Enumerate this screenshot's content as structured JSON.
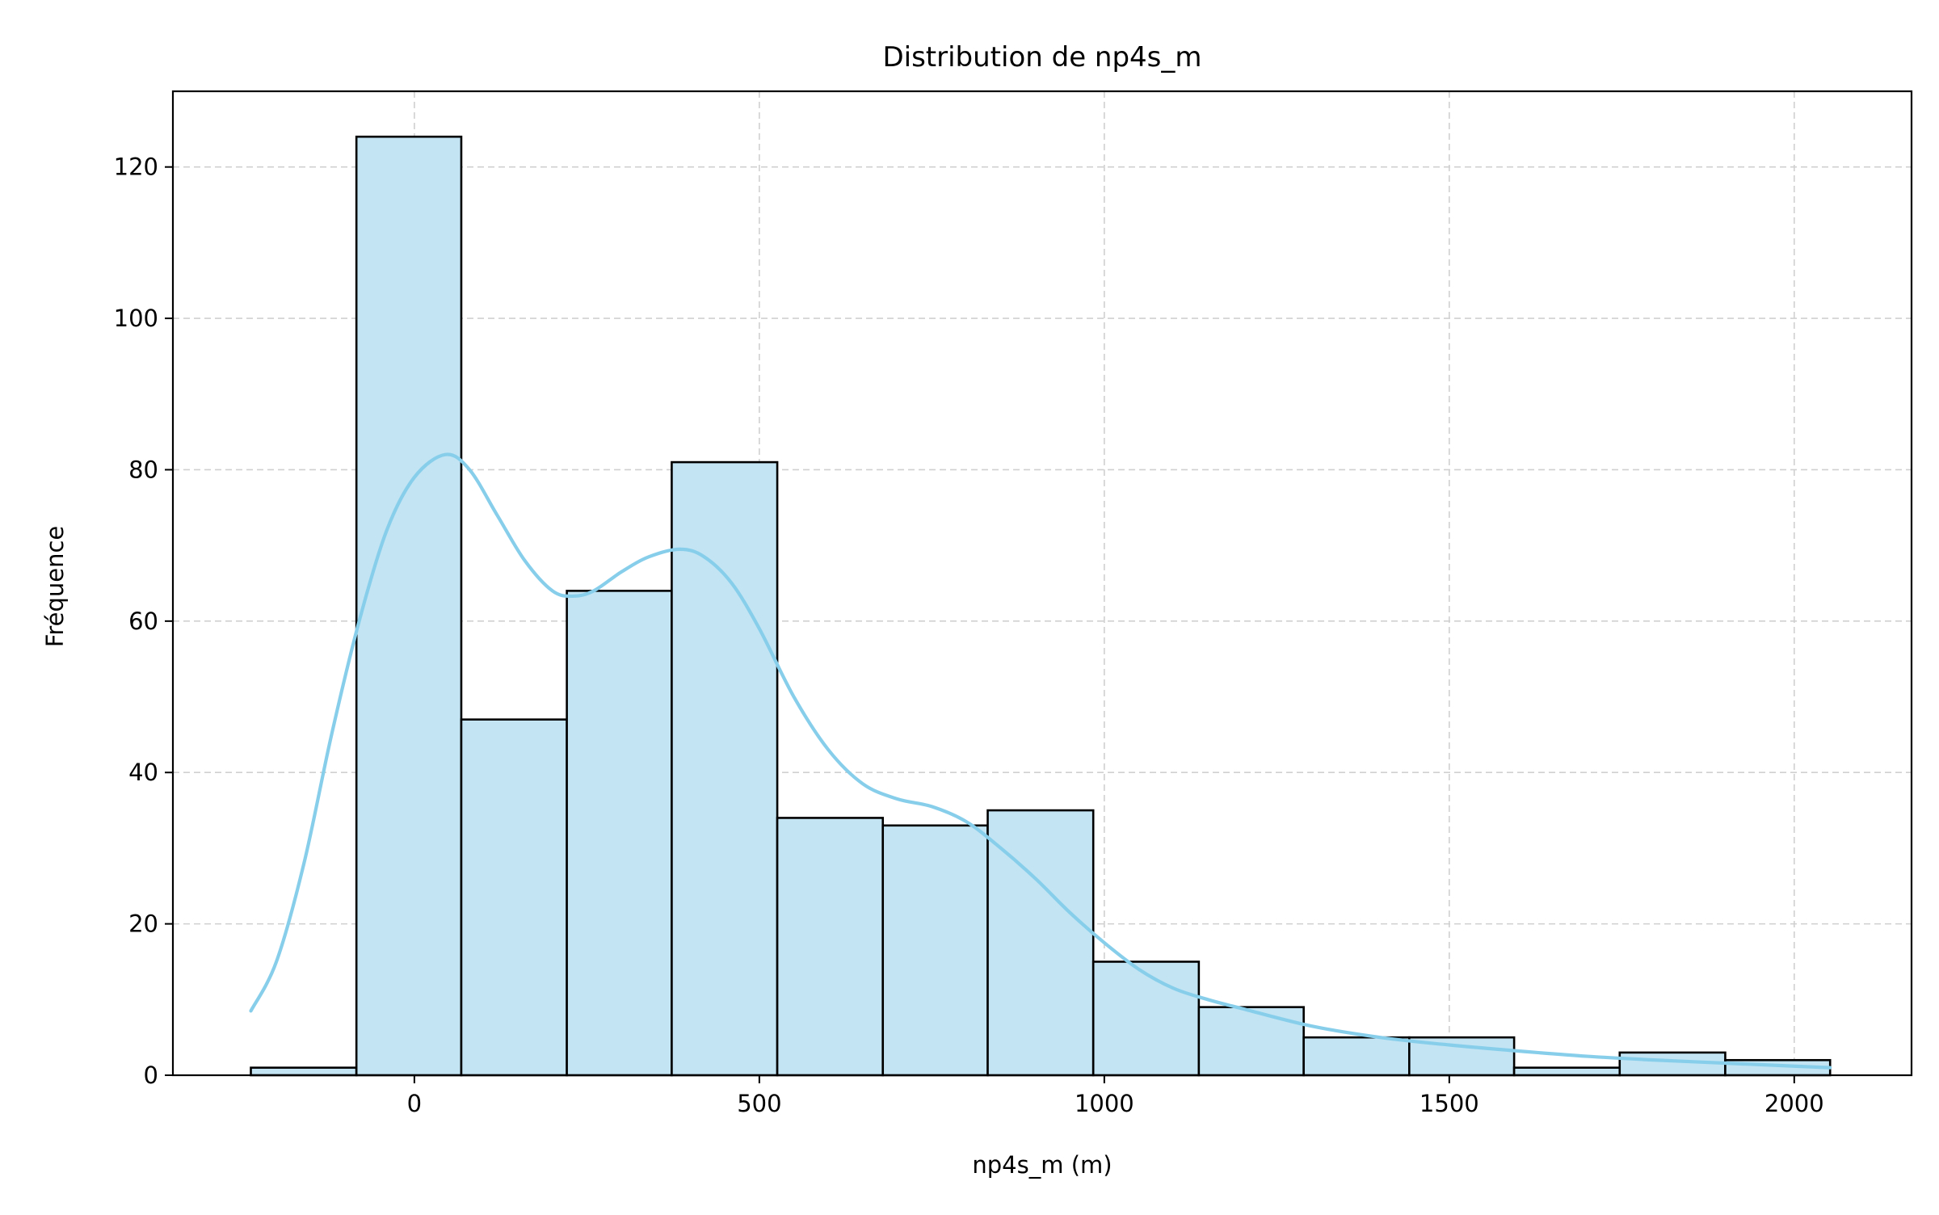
{
  "chart_data": {
    "type": "histogram",
    "title": "Distribution de np4s_m",
    "xlabel": "np4s_m (m)",
    "ylabel": "Fréquence",
    "xlim": [
      -350,
      2170
    ],
    "ylim": [
      0,
      130
    ],
    "xticks": [
      0,
      500,
      1000,
      1500,
      2000
    ],
    "yticks": [
      0,
      20,
      40,
      60,
      80,
      100,
      120
    ],
    "grid": true,
    "grid_style": "dashed",
    "bar_color": "#c2e4f3",
    "bar_edge_color": "#000000",
    "kde_color": "#87ceeb",
    "bins": [
      {
        "x0": -237,
        "x1": -84,
        "count": 1
      },
      {
        "x0": -84,
        "x1": 68,
        "count": 124
      },
      {
        "x0": 68,
        "x1": 221,
        "count": 47
      },
      {
        "x0": 221,
        "x1": 373,
        "count": 64
      },
      {
        "x0": 373,
        "x1": 526,
        "count": 81
      },
      {
        "x0": 526,
        "x1": 679,
        "count": 34
      },
      {
        "x0": 679,
        "x1": 831,
        "count": 33
      },
      {
        "x0": 831,
        "x1": 984,
        "count": 35
      },
      {
        "x0": 984,
        "x1": 1137,
        "count": 15
      },
      {
        "x0": 1137,
        "x1": 1289,
        "count": 9
      },
      {
        "x0": 1289,
        "x1": 1442,
        "count": 5
      },
      {
        "x0": 1442,
        "x1": 1594,
        "count": 5
      },
      {
        "x0": 1594,
        "x1": 1747,
        "count": 1
      },
      {
        "x0": 1747,
        "x1": 1900,
        "count": 3
      },
      {
        "x0": 1900,
        "x1": 2052,
        "count": 2
      }
    ],
    "kde": {
      "x": [
        -237,
        -200,
        -160,
        -120,
        -80,
        -40,
        0,
        45,
        80,
        120,
        160,
        200,
        230,
        260,
        300,
        340,
        385,
        420,
        460,
        500,
        550,
        600,
        650,
        700,
        750,
        800,
        850,
        900,
        950,
        1000,
        1050,
        1100,
        1150,
        1200,
        1300,
        1400,
        1500,
        1600,
        1700,
        1800,
        1900,
        2000,
        2052
      ],
      "y": [
        8.5,
        15,
        28,
        45,
        60,
        72,
        79,
        82,
        80,
        74,
        68,
        64,
        63.3,
        64,
        66.5,
        68.5,
        69.5,
        68.5,
        65,
        59,
        50,
        43,
        38.5,
        36.5,
        35.5,
        33.5,
        30,
        26,
        21.5,
        17.5,
        14,
        11.5,
        10,
        8.8,
        6.5,
        5,
        4,
        3.2,
        2.5,
        2,
        1.6,
        1.2,
        1
      ]
    }
  }
}
